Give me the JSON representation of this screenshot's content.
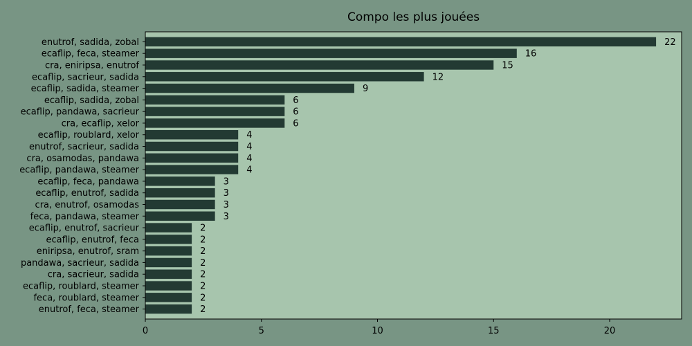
{
  "colors": {
    "figure_background": "#789584",
    "plot_background": "#a7c5ad",
    "bar": "#233a33",
    "axis": "#000000"
  },
  "chart_data": {
    "type": "bar",
    "orientation": "horizontal",
    "title": "Compo les plus jouées",
    "xlabel": "",
    "ylabel": "",
    "xlim": [
      0,
      23.1
    ],
    "xticks": [
      0,
      5,
      10,
      15,
      20
    ],
    "grid": false,
    "categories": [
      "enutrof, sadida, zobal",
      "ecaflip, feca, steamer",
      "cra, eniripsa, enutrof",
      "ecaflip, sacrieur, sadida",
      "ecaflip, sadida, steamer",
      "ecaflip, sadida, zobal",
      "ecaflip, pandawa, sacrieur",
      "cra, ecaflip, xelor",
      "ecaflip, roublard, xelor",
      "enutrof, sacrieur, sadida",
      "cra, osamodas, pandawa",
      "ecaflip, pandawa, steamer",
      "ecaflip, feca, pandawa",
      "ecaflip, enutrof, sadida",
      "cra, enutrof, osamodas",
      "feca, pandawa, steamer",
      "ecaflip, enutrof, sacrieur",
      "ecaflip, enutrof, feca",
      "eniripsa, enutrof, sram",
      "pandawa, sacrieur, sadida",
      "cra, sacrieur, sadida",
      "ecaflip, roublard, steamer",
      "feca, roublard, steamer",
      "enutrof, feca, steamer"
    ],
    "values": [
      22,
      16,
      15,
      12,
      9,
      6,
      6,
      6,
      4,
      4,
      4,
      4,
      3,
      3,
      3,
      3,
      2,
      2,
      2,
      2,
      2,
      2,
      2,
      2
    ]
  }
}
